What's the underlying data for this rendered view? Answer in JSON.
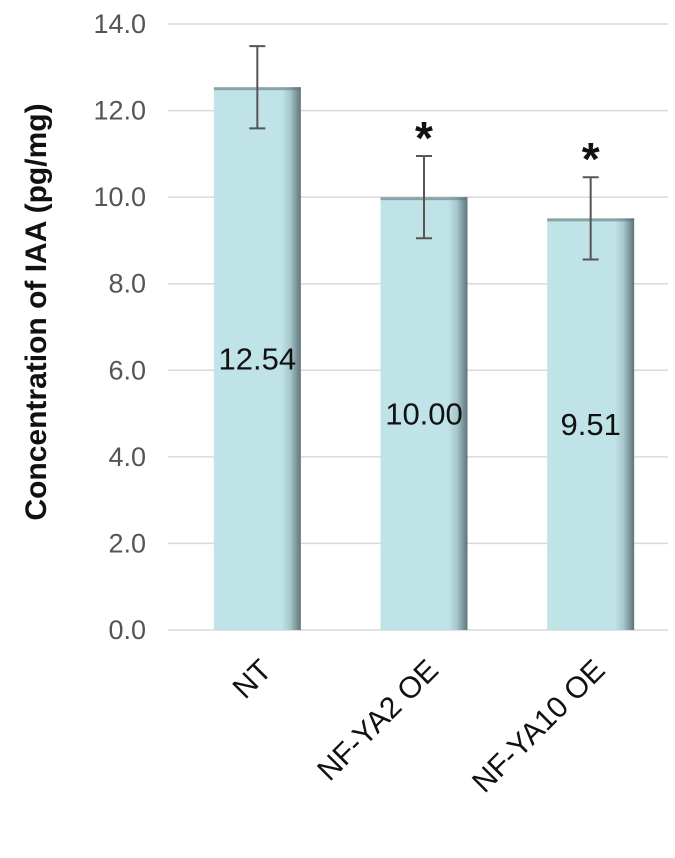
{
  "chart_data": {
    "type": "bar",
    "title": "",
    "xlabel": "",
    "ylabel": "Concentration of IAA (pg/mg)",
    "categories": [
      "NT",
      "NF-YA2 OE",
      "NF-YA10 OE"
    ],
    "values": [
      12.54,
      10.0,
      9.51
    ],
    "data_labels": [
      "12.54",
      "10.00",
      "9.51"
    ],
    "error": [
      0.95,
      0.95,
      0.95
    ],
    "significance": [
      "",
      "*",
      "*"
    ],
    "ylim": [
      0,
      14
    ],
    "yticks": [
      "0.0",
      "2.0",
      "4.0",
      "6.0",
      "8.0",
      "10.0",
      "12.0",
      "14.0"
    ],
    "grid": true,
    "bar_color": "#bfe3e6",
    "bar_shade_color": "#5f7378",
    "error_color": "#555555",
    "grid_color": "#d9d9d9"
  }
}
